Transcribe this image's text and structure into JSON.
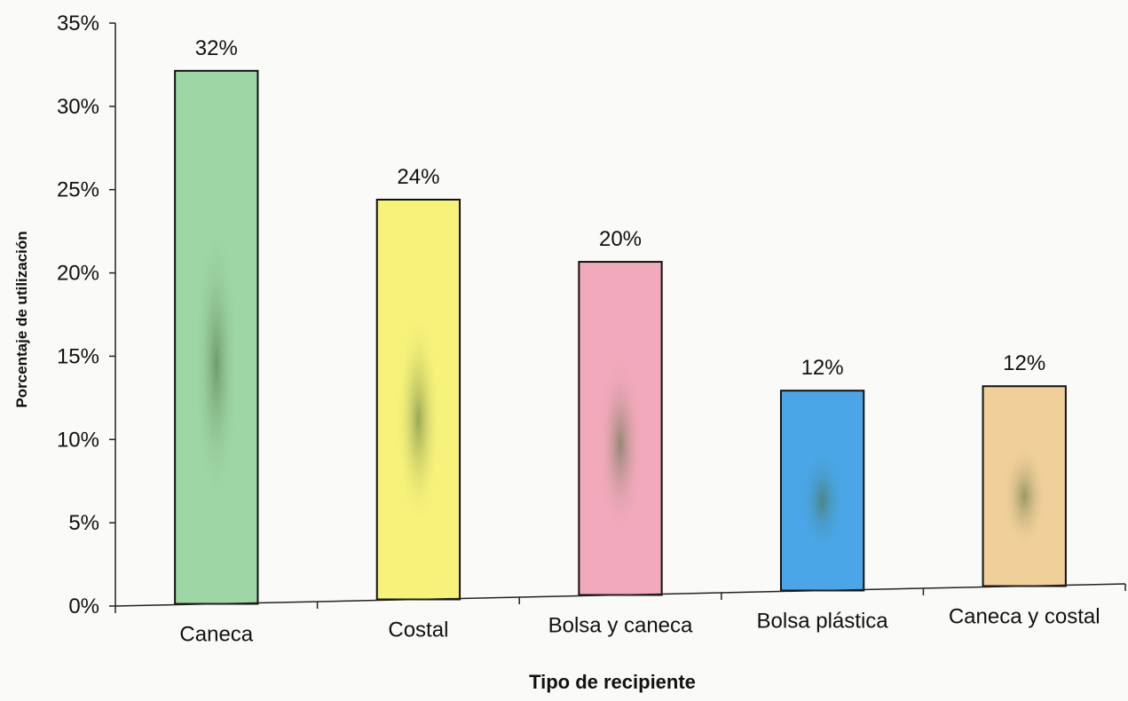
{
  "chart_data": {
    "type": "bar",
    "title": "",
    "xlabel": "Tipo de recipiente",
    "ylabel": "Porcentaje de utilización",
    "categories": [
      "Caneca",
      "Costal",
      "Bolsa y caneca",
      "Bolsa plástica",
      "Caneca y costal"
    ],
    "values": [
      32,
      24,
      20,
      12,
      12
    ],
    "data_labels": [
      "32%",
      "24%",
      "20%",
      "12%",
      "12%"
    ],
    "colors": [
      "#9fd6a6",
      "#f7f27a",
      "#f2a9bb",
      "#4aa6e6",
      "#f1cf9a"
    ],
    "ylim": [
      0,
      35
    ],
    "yticks": [
      0,
      5,
      10,
      15,
      20,
      25,
      30,
      35
    ],
    "ytick_labels": [
      "0%",
      "5%",
      "10%",
      "15%",
      "20%",
      "25%",
      "30%",
      "35%"
    ],
    "grid": false,
    "legend": "none"
  }
}
